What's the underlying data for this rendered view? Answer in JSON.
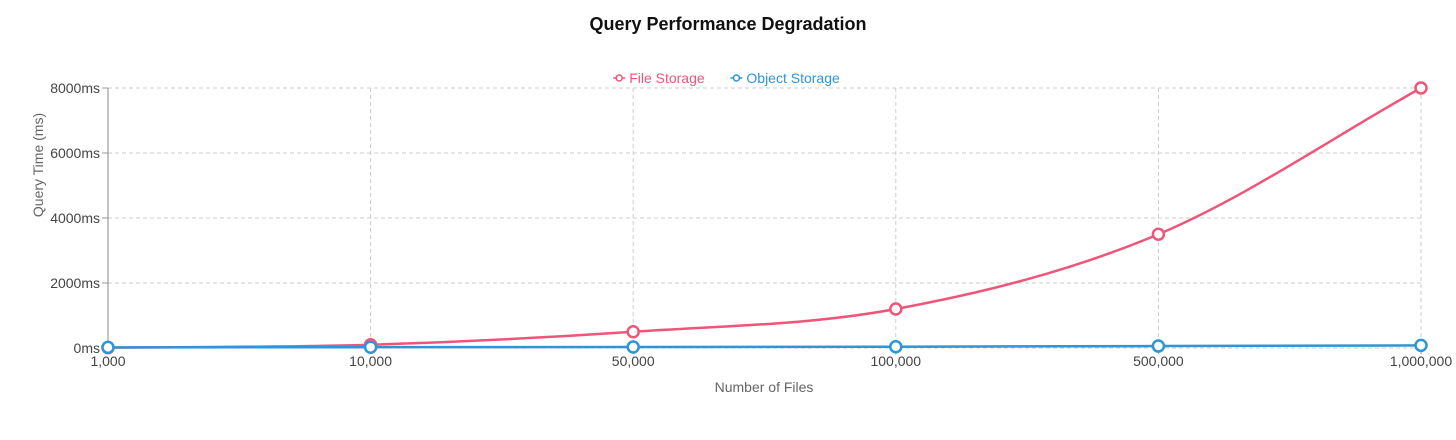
{
  "chart_data": {
    "type": "line",
    "title": "Query Performance Degradation",
    "xlabel": "Number of Files",
    "ylabel": "Query Time (ms)",
    "categories": [
      "1,000",
      "10,000",
      "50,000",
      "100,000",
      "500,000",
      "1,000,000"
    ],
    "ylim": [
      0,
      8000
    ],
    "yticks": [
      0,
      2000,
      4000,
      6000,
      8000
    ],
    "ytick_suffix": "ms",
    "ytick_labels": [
      "0ms",
      "2000ms",
      "4000ms",
      "6000ms",
      "8000ms"
    ],
    "grid": true,
    "legend_position": "top-center",
    "series": [
      {
        "name": "File Storage",
        "color": "#ef5579",
        "values": [
          10,
          100,
          500,
          1200,
          3500,
          8000
        ]
      },
      {
        "name": "Object Storage",
        "color": "#2f95d8",
        "values": [
          20,
          25,
          30,
          40,
          60,
          80
        ]
      }
    ]
  }
}
